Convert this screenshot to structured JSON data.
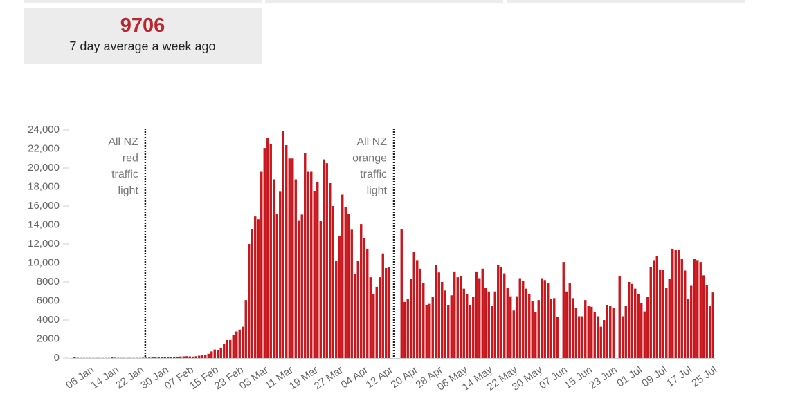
{
  "cards": [
    {
      "value": 9706,
      "label": "7 day average a week ago"
    }
  ],
  "chart_data": {
    "type": "bar",
    "color": "#c8161d",
    "grid": false,
    "annotations": [
      [
        "All NZ",
        "red",
        "traffic",
        "light"
      ],
      [
        "All NZ",
        "orange",
        "traffic",
        "light"
      ]
    ],
    "ylim": [
      0,
      24000
    ],
    "yticks": [
      0,
      2000,
      4000,
      6000,
      8000,
      {
        "value": 10000,
        "label": "10,000"
      },
      {
        "value": 12000,
        "label": "12,000"
      },
      {
        "value": 14000,
        "label": "14,000"
      },
      {
        "value": 16000,
        "label": "16,000"
      },
      {
        "value": 18000,
        "label": "18,000"
      },
      {
        "value": 20000,
        "label": "20,000"
      },
      {
        "value": 22000,
        "label": "22,000"
      },
      {
        "value": 24000,
        "label": "24,000"
      }
    ],
    "categories": [
      null,
      null,
      null,
      null,
      null,
      "06 Jan",
      null,
      null,
      null,
      null,
      null,
      null,
      null,
      "14 Jan",
      null,
      null,
      null,
      null,
      null,
      null,
      null,
      "22 Jan",
      null,
      null,
      null,
      null,
      null,
      null,
      null,
      "30 Jan",
      null,
      null,
      null,
      null,
      null,
      null,
      null,
      "07 Feb",
      null,
      null,
      null,
      null,
      null,
      null,
      null,
      "15 Feb",
      null,
      null,
      null,
      null,
      null,
      null,
      null,
      "23 Feb",
      null,
      null,
      null,
      null,
      null,
      null,
      null,
      "03 Mar",
      null,
      null,
      null,
      null,
      null,
      null,
      null,
      "11 Mar",
      null,
      null,
      null,
      null,
      null,
      null,
      null,
      "19 Mar",
      null,
      null,
      null,
      null,
      null,
      null,
      null,
      "27 Mar",
      null,
      null,
      null,
      null,
      null,
      null,
      null,
      "04 Apr",
      null,
      null,
      null,
      null,
      null,
      null,
      null,
      "12 Apr",
      null,
      null,
      null,
      null,
      null,
      null,
      null,
      "20 Apr",
      null,
      null,
      null,
      null,
      null,
      null,
      null,
      "28 Apr",
      null,
      null,
      null,
      null,
      null,
      null,
      null,
      "06 May",
      null,
      null,
      null,
      null,
      null,
      null,
      null,
      "14 May",
      null,
      null,
      null,
      null,
      null,
      null,
      null,
      "22 May",
      null,
      null,
      null,
      null,
      null,
      null,
      null,
      "30 May",
      null,
      null,
      null,
      null,
      null,
      null,
      null,
      "07 Jun",
      null,
      null,
      null,
      null,
      null,
      null,
      null,
      "15 Jun",
      null,
      null,
      null,
      null,
      null,
      null,
      null,
      "23 Jun",
      null,
      null,
      null,
      null,
      null,
      null,
      null,
      "01 Jul",
      null,
      null,
      null,
      null,
      null,
      null,
      null,
      "09 Jul",
      null,
      null,
      null,
      null,
      null,
      null,
      null,
      "17 Jul",
      null,
      null,
      null,
      null,
      null,
      null,
      null,
      "25 Jul"
    ],
    "values": [
      120,
      30,
      20,
      20,
      20,
      20,
      20,
      20,
      20,
      20,
      20,
      20,
      80,
      40,
      20,
      20,
      20,
      20,
      20,
      20,
      20,
      20,
      40,
      50,
      60,
      70,
      80,
      90,
      100,
      100,
      110,
      120,
      130,
      150,
      170,
      180,
      200,
      180,
      160,
      200,
      250,
      300,
      350,
      450,
      700,
      900,
      800,
      1100,
      1500,
      1900,
      1900,
      2400,
      2800,
      3000,
      3300,
      6100,
      12000,
      13600,
      14900,
      14600,
      19600,
      22100,
      23200,
      22500,
      18800,
      15200,
      17500,
      23900,
      22400,
      21000,
      21000,
      18800,
      14500,
      15100,
      21600,
      19600,
      19600,
      17600,
      18500,
      14400,
      20900,
      20500,
      18400,
      16000,
      10200,
      12800,
      17200,
      15900,
      15200,
      13500,
      8800,
      10200,
      14100,
      12600,
      11500,
      8500,
      6700,
      7500,
      8500,
      11000,
      9500,
      9600,
      null,
      null,
      null,
      13600,
      5900,
      6200,
      8300,
      11200,
      10300,
      9400,
      7900,
      5600,
      5700,
      6400,
      9800,
      9000,
      8000,
      7100,
      5600,
      6600,
      9100,
      8500,
      8600,
      7300,
      6700,
      5600,
      6400,
      9100,
      8400,
      9400,
      7400,
      7000,
      5500,
      7000,
      9800,
      9600,
      8900,
      7400,
      6500,
      5000,
      6500,
      8400,
      8100,
      7300,
      6700,
      6000,
      4800,
      6100,
      8400,
      8200,
      7900,
      6200,
      6300,
      4300,
      null,
      10100,
      7000,
      7900,
      6300,
      5300,
      4400,
      4400,
      6100,
      5500,
      5400,
      4800,
      4400,
      3300,
      4000,
      5600,
      5500,
      5300,
      null,
      8600,
      4400,
      5500,
      8000,
      7800,
      7300,
      6700,
      5800,
      4900,
      6400,
      9600,
      10300,
      10700,
      9300,
      9300,
      7400,
      8300,
      11500,
      11400,
      11400,
      10400,
      9200,
      6200,
      7600,
      10400,
      10300,
      10100,
      8700,
      7700,
      5500,
      6900
    ]
  }
}
